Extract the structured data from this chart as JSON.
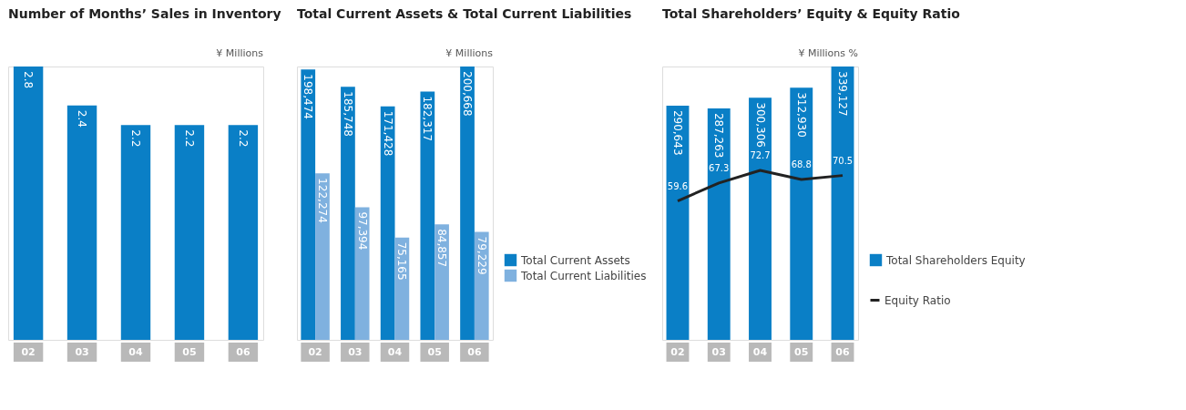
{
  "chart_data": [
    {
      "type": "bar",
      "title": "Number of Months’ Sales in Inventory",
      "subtitle": "¥ Millions",
      "categories": [
        "02",
        "03",
        "04",
        "05",
        "06"
      ],
      "values": [
        2.8,
        2.4,
        2.2,
        2.2,
        2.2
      ],
      "color": "#0a7fc6",
      "data_labels": true,
      "tick_labels": "x",
      "legend": false
    },
    {
      "type": "bar",
      "title": "Total Current Assets & Total Current Liabilities",
      "subtitle": "¥ Millions",
      "categories": [
        "02",
        "03",
        "04",
        "05",
        "06"
      ],
      "data_labels": true,
      "tick_labels": "x",
      "legend": "bottom right",
      "series": [
        {
          "name": "Total Current Assets",
          "color": "#0a7fc6",
          "values": [
            198474,
            185748,
            171428,
            182317,
            200668
          ],
          "value_labels": [
            "198,474",
            "185,748",
            "171,428",
            "182,317",
            "200,668"
          ]
        },
        {
          "name": "Total Current Liabilities",
          "color": "#7fb1df",
          "values": [
            122274,
            97394,
            75165,
            84857,
            79229
          ],
          "value_labels": [
            "122,274",
            "97,394",
            "75,165",
            "84,857",
            "79,229"
          ]
        }
      ]
    },
    {
      "type": "bar",
      "title": "Total Shareholders’ Equity & Equity Ratio",
      "subtitle": "¥ Millions  %",
      "categories": [
        "02",
        "03",
        "04",
        "05",
        "06"
      ],
      "data_labels": true,
      "tick_labels": "x",
      "legend": "bottom right",
      "line_style": "solid",
      "series": [
        {
          "name": "Total Shareholders Equity",
          "color": "#0a7fc6",
          "values": [
            290643,
            287263,
            300306,
            312930,
            339127
          ],
          "value_labels": [
            "290,643",
            "287,263",
            "300,306",
            "312,930",
            "339,127"
          ]
        },
        {
          "name": "Equity Ratio",
          "type": "line",
          "axis": "y2",
          "color": "#222222",
          "values": [
            59.6,
            67.3,
            72.7,
            68.8,
            70.5
          ]
        }
      ]
    }
  ]
}
